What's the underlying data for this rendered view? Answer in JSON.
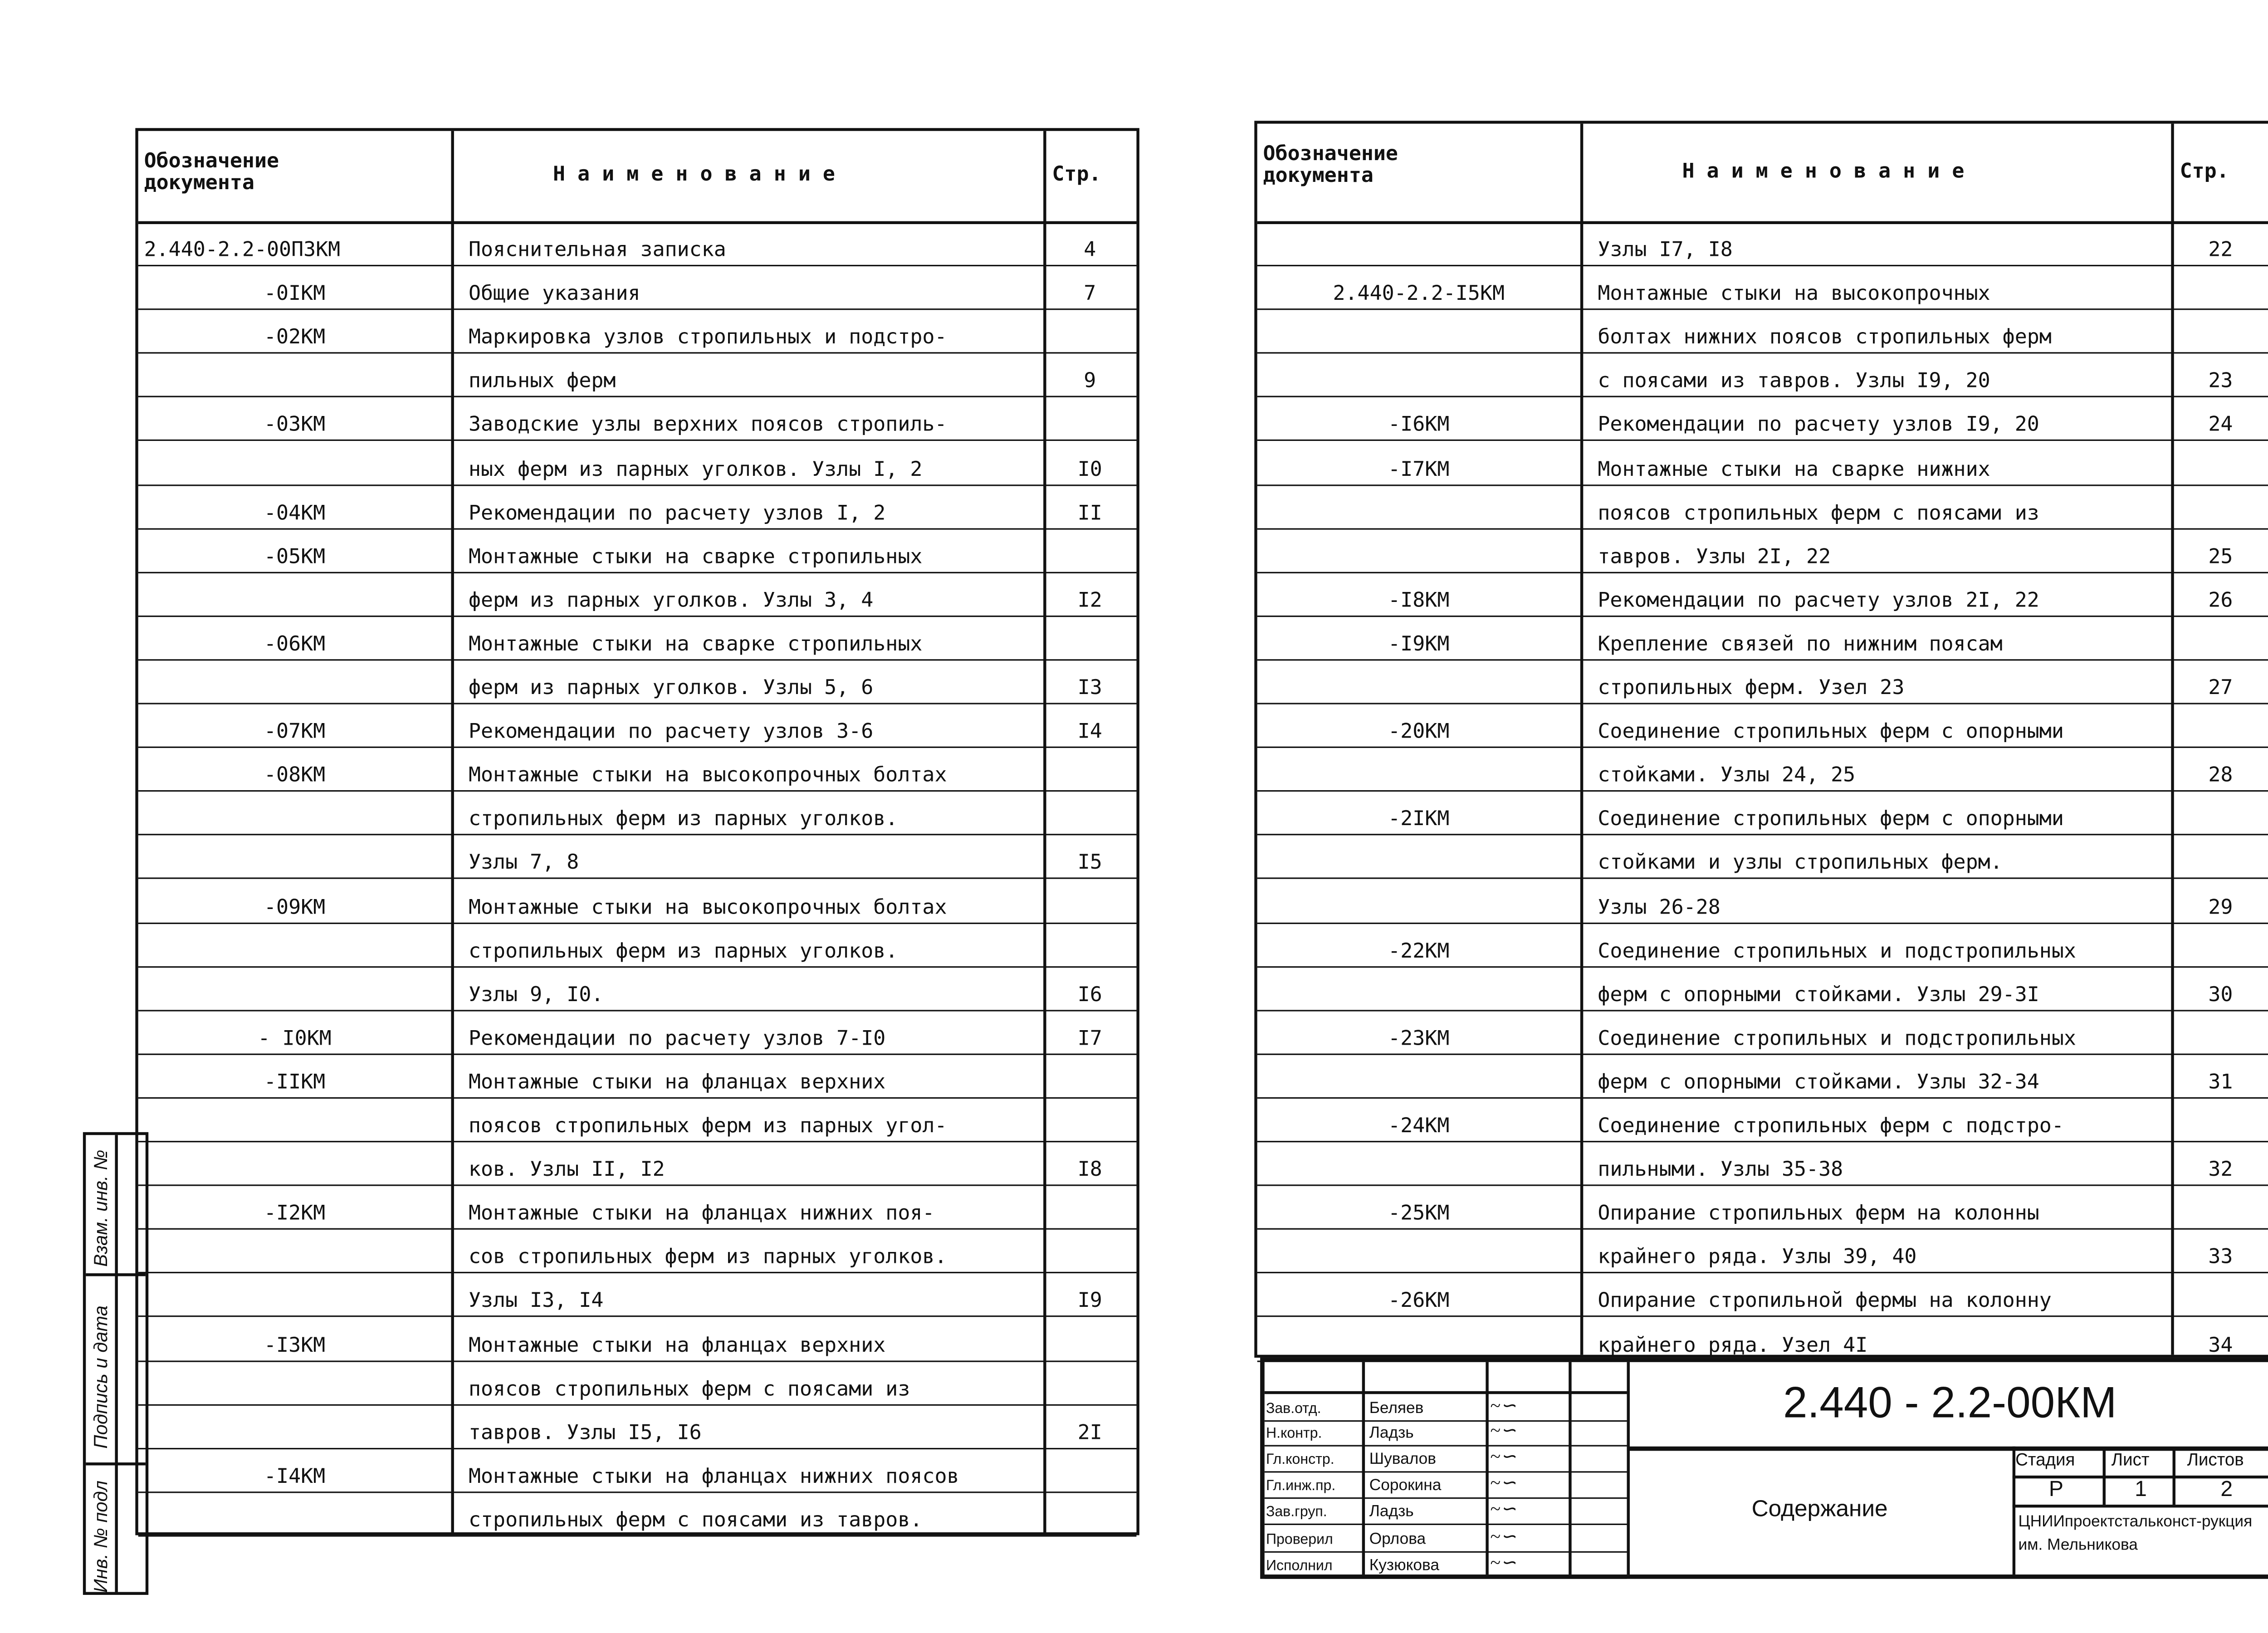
{
  "left_table": {
    "headers": {
      "doc": "Обозначение документа",
      "name": "Н а и м е н о в а н и е",
      "page": "Стр."
    },
    "rows": [
      [
        "2.440-2.2-00ПЗКМ",
        "Пояснительная записка",
        "4"
      ],
      [
        "-0IКМ",
        "Общие указания",
        "7"
      ],
      [
        "-02КМ",
        "Маркировка узлов стропильных и подстро-",
        ""
      ],
      [
        "",
        "пильных ферм",
        "9"
      ],
      [
        "-03КМ",
        "Заводские узлы верхних поясов стропиль-",
        ""
      ],
      [
        "",
        "ных ферм из парных уголков. Узлы I, 2",
        "I0"
      ],
      [
        "-04КМ",
        "Рекомендации по расчету узлов I, 2",
        "II"
      ],
      [
        "-05КМ",
        "Монтажные стыки на сварке стропильных",
        ""
      ],
      [
        "",
        "ферм из парных уголков. Узлы 3, 4",
        "I2"
      ],
      [
        "-06КМ",
        "Монтажные стыки на сварке стропильных",
        ""
      ],
      [
        "",
        "ферм из парных уголков. Узлы 5, 6",
        "I3"
      ],
      [
        "-07КМ",
        "Рекомендации по расчету узлов 3-6",
        "I4"
      ],
      [
        "-08КМ",
        "Монтажные стыки на высокопрочных болтах",
        ""
      ],
      [
        "",
        "стропильных ферм из парных уголков.",
        ""
      ],
      [
        "",
        "Узлы 7, 8",
        "I5"
      ],
      [
        "-09КМ",
        "Монтажные стыки на высокопрочных болтах",
        ""
      ],
      [
        "",
        "стропильных ферм из парных уголков.",
        ""
      ],
      [
        "",
        "Узлы 9, I0.",
        "I6"
      ],
      [
        "- I0КМ",
        "Рекомендации по расчету узлов 7-I0",
        "I7"
      ],
      [
        "-IIКМ",
        "Монтажные стыки на фланцах верхних",
        ""
      ],
      [
        "",
        "поясов стропильных ферм из парных угол-",
        ""
      ],
      [
        "",
        "ков. Узлы II, I2",
        "I8"
      ],
      [
        "-I2КМ",
        "Монтажные стыки на фланцах нижних поя-",
        ""
      ],
      [
        "",
        "сов стропильных ферм из парных уголков.",
        ""
      ],
      [
        "",
        "Узлы I3, I4",
        "I9"
      ],
      [
        "-I3КМ",
        "Монтажные стыки на фланцах верхних",
        ""
      ],
      [
        "",
        "поясов стропильных ферм с поясами из",
        ""
      ],
      [
        "",
        "тавров. Узлы I5, I6",
        "2I"
      ],
      [
        "-I4КМ",
        "Монтажные стыки на фланцах нижних поясов",
        ""
      ],
      [
        "",
        "стропильных ферм с поясами из тавров.",
        ""
      ]
    ]
  },
  "right_table": {
    "headers": {
      "doc": "Обозначение документа",
      "name": "Н а и м е н о в а н и е",
      "page": "Стр."
    },
    "rows": [
      [
        "",
        "Узлы I7, I8",
        "22"
      ],
      [
        "2.440-2.2-I5КМ",
        "Монтажные стыки на высокопрочных",
        ""
      ],
      [
        "",
        "болтах нижних поясов стропильных ферм",
        ""
      ],
      [
        "",
        "с поясами из тавров. Узлы I9, 20",
        "23"
      ],
      [
        "-I6КМ",
        "Рекомендации по расчету узлов I9, 20",
        "24"
      ],
      [
        "-I7КМ",
        "Монтажные стыки на сварке нижних",
        ""
      ],
      [
        "",
        "поясов стропильных ферм с поясами из",
        ""
      ],
      [
        "",
        "тавров. Узлы 2I, 22",
        "25"
      ],
      [
        "-I8КМ",
        "Рекомендации по расчету узлов 2I, 22",
        "26"
      ],
      [
        "-I9КМ",
        "Крепление связей по нижним поясам",
        ""
      ],
      [
        "",
        "стропильных ферм. Узел 23",
        "27"
      ],
      [
        "-20КМ",
        "Соединение стропильных ферм с опорными",
        ""
      ],
      [
        "",
        "стойками. Узлы 24, 25",
        "28"
      ],
      [
        "-2IКМ",
        "Соединение стропильных ферм с опорными",
        ""
      ],
      [
        "",
        "стойками и узлы стропильных ферм.",
        ""
      ],
      [
        "",
        "Узлы 26-28",
        "29"
      ],
      [
        "-22КМ",
        "Соединение стропильных и подстропильных",
        ""
      ],
      [
        "",
        "ферм с опорными стойками. Узлы 29-3I",
        "30"
      ],
      [
        "-23КМ",
        "Соединение стропильных и подстропильных",
        ""
      ],
      [
        "",
        "ферм с опорными стойками. Узлы 32-34",
        "31"
      ],
      [
        "-24КМ",
        "Соединение стропильных ферм с подстро-",
        ""
      ],
      [
        "",
        "пильными. Узлы 35-38",
        "32"
      ],
      [
        "-25КМ",
        "Опирание стропильных ферм на колонны",
        ""
      ],
      [
        "",
        "крайнего ряда. Узлы 39, 40",
        "33"
      ],
      [
        "-26КМ",
        "Опирание стропильной фермы на колонну",
        ""
      ],
      [
        "",
        "крайнего ряда. Узел 4I",
        "34"
      ]
    ]
  },
  "title_block": {
    "code": "2.440 - 2.2-00КМ",
    "sheet_title": "Содержание",
    "signatures": [
      [
        "Зав.отд.",
        "Беляев"
      ],
      [
        "Н.контр.",
        "Ладзь"
      ],
      [
        "Гл.констр.",
        "Шувалов"
      ],
      [
        "Гл.инж.пр.",
        "Сорокина"
      ],
      [
        "Зав.груп.",
        "Ладзь"
      ],
      [
        "Проверил",
        "Орлова"
      ],
      [
        "Исполнил",
        "Кузюкова"
      ]
    ],
    "stage_label": "Стадия",
    "sheet_label": "Лист",
    "sheets_label": "Листов",
    "stage": "Р",
    "sheet": "1",
    "sheets": "2",
    "organization": "ЦНИИпроектстальконст-рукция им. Мельникова"
  },
  "side_stamp": {
    "labels": [
      "Взам. инв. №",
      "Подпись и дата",
      "Инв. № подл"
    ]
  }
}
